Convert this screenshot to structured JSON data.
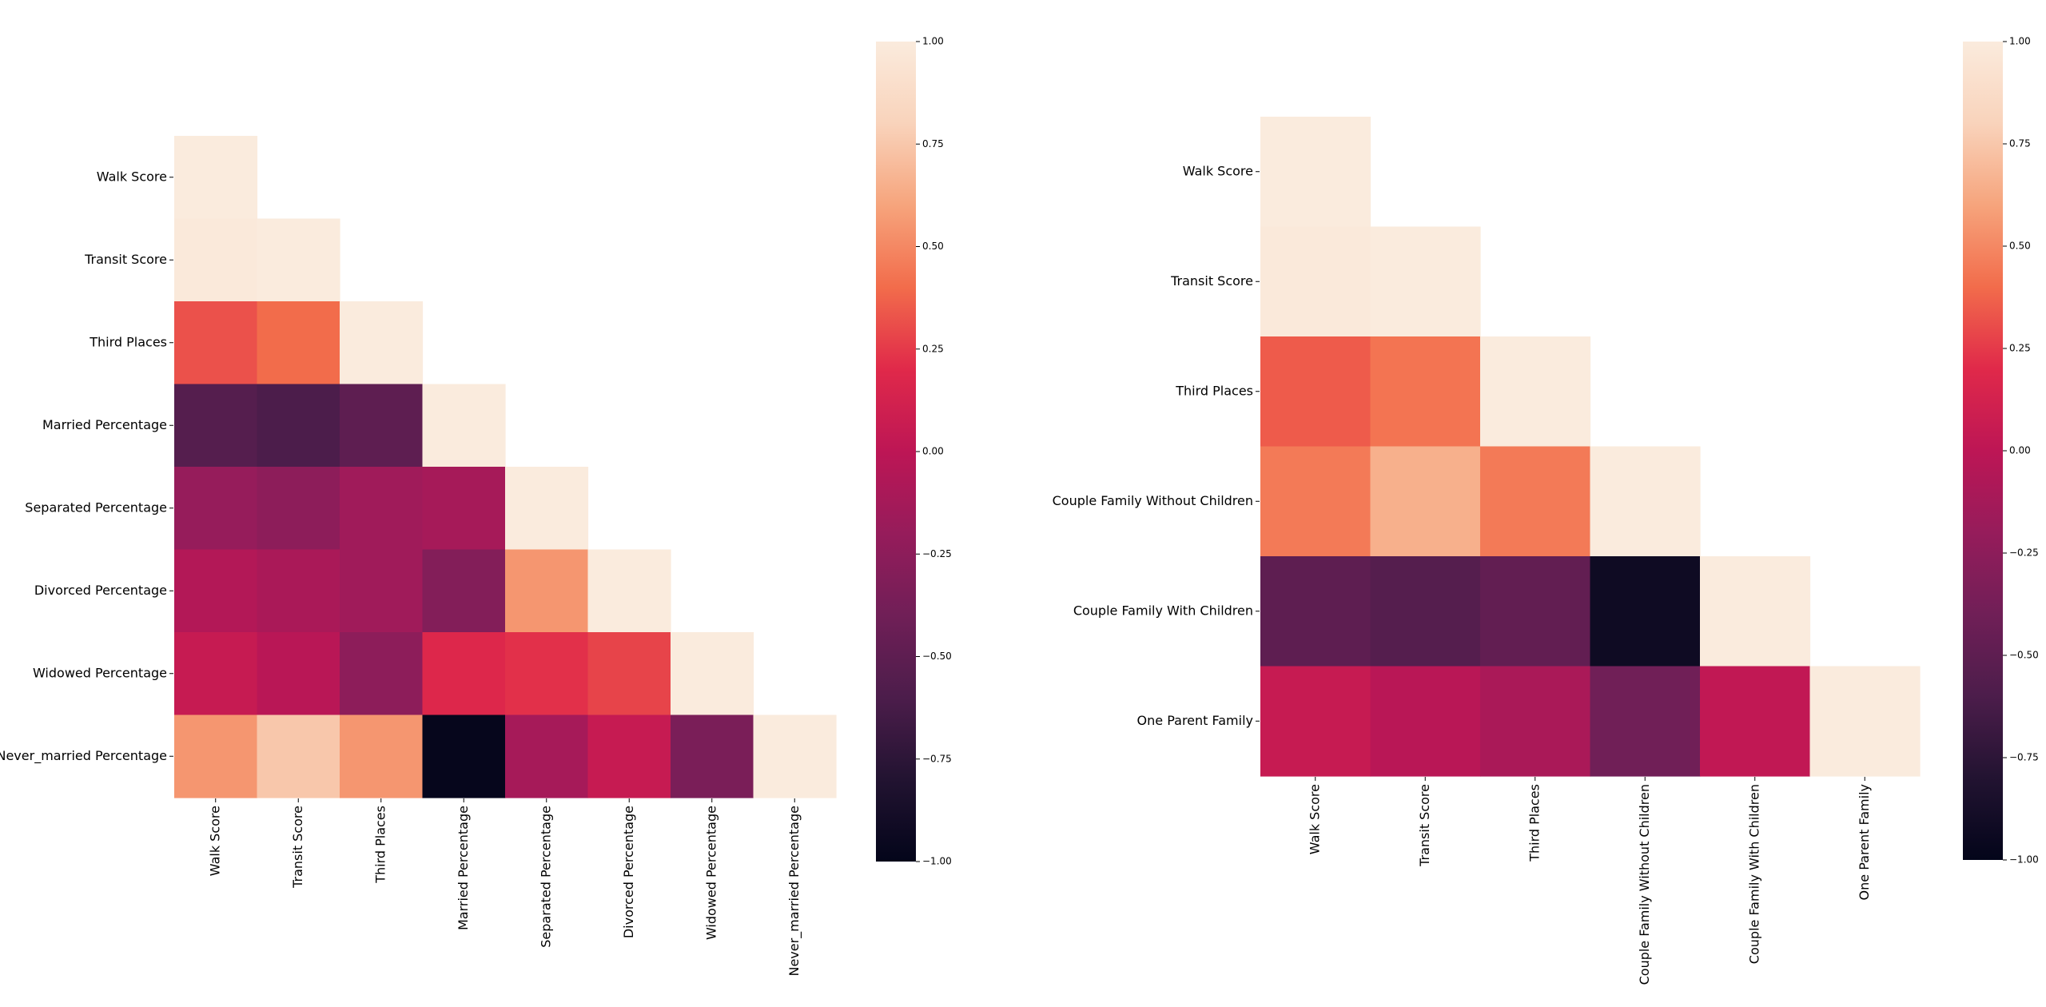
{
  "chart_data": [
    {
      "type": "heatmap",
      "title": "",
      "mask": "upper-triangle",
      "labels": [
        "Walk Score",
        "Transit Score",
        "Third Places",
        "Married Percentage",
        "Separated Percentage",
        "Divorced Percentage",
        "Widowed Percentage",
        "Never_married Percentage"
      ],
      "values": [
        [
          1.0,
          null,
          null,
          null,
          null,
          null,
          null,
          null
        ],
        [
          0.98,
          1.0,
          null,
          null,
          null,
          null,
          null,
          null
        ],
        [
          0.32,
          0.4,
          1.0,
          null,
          null,
          null,
          null,
          null
        ],
        [
          -0.55,
          -0.6,
          -0.5,
          1.0,
          null,
          null,
          null,
          null
        ],
        [
          -0.2,
          -0.25,
          -0.15,
          -0.12,
          1.0,
          null,
          null,
          null
        ],
        [
          -0.05,
          -0.1,
          -0.15,
          -0.3,
          0.55,
          1.0,
          null,
          null
        ],
        [
          0.05,
          -0.02,
          -0.25,
          0.18,
          0.22,
          0.28,
          1.0,
          null
        ],
        [
          0.55,
          0.75,
          0.55,
          -0.98,
          -0.12,
          0.05,
          -0.35,
          1.0
        ]
      ],
      "colorbar": {
        "min": -1.0,
        "max": 1.0,
        "ticks": [
          "1.00",
          "0.75",
          "0.50",
          "0.25",
          "0.00",
          "−0.25",
          "−0.50",
          "−0.75",
          "−1.00"
        ]
      },
      "colormap": "rocket",
      "grid": false,
      "legend": "colorbar right"
    },
    {
      "type": "heatmap",
      "title": "",
      "mask": "upper-triangle",
      "labels": [
        "Walk Score",
        "Transit Score",
        "Third Places",
        "Couple Family Without Children",
        "Couple Family With Children",
        "One Parent Family"
      ],
      "values": [
        [
          1.0,
          null,
          null,
          null,
          null,
          null
        ],
        [
          0.98,
          1.0,
          null,
          null,
          null,
          null
        ],
        [
          0.35,
          0.43,
          1.0,
          null,
          null,
          null
        ],
        [
          0.45,
          0.65,
          0.45,
          1.0,
          null,
          null
        ],
        [
          -0.5,
          -0.55,
          -0.48,
          -0.92,
          1.0,
          null
        ],
        [
          0.05,
          -0.02,
          -0.1,
          -0.4,
          0.02,
          1.0
        ]
      ],
      "colorbar": {
        "min": -1.0,
        "max": 1.0,
        "ticks": [
          "1.00",
          "0.75",
          "0.50",
          "0.25",
          "0.00",
          "−0.25",
          "−0.50",
          "−0.75",
          "−1.00"
        ]
      },
      "colormap": "rocket",
      "grid": false,
      "legend": "colorbar right"
    }
  ]
}
